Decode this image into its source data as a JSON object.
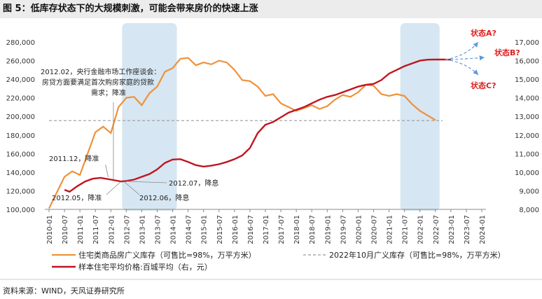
{
  "figure": {
    "title": "图 5：低库存状态下的大规模刺激，可能会带来房价的快速上涨",
    "source": "资料来源：WIND，天风证券研究所"
  },
  "colors": {
    "inventory": "#f0913a",
    "price": "#c0151f",
    "reference": "#9a9a9a",
    "highlight": "#cfe2f0",
    "scenario": "#e02020",
    "arrow": "#5b9bd5"
  },
  "chart_data": {
    "type": "line",
    "x_categories": [
      "2010-01",
      "2010-07",
      "2011-01",
      "2011-07",
      "2012-01",
      "2012-07",
      "2013-01",
      "2013-07",
      "2014-01",
      "2014-07",
      "2015-01",
      "2015-07",
      "2016-01",
      "2016-07",
      "2017-01",
      "2017-07",
      "2018-01",
      "2018-07",
      "2019-01",
      "2019-07",
      "2020-01",
      "2020-07",
      "2021-01",
      "2021-07",
      "2022-01",
      "2022-07",
      "2023-01",
      "2023-07",
      "2024-01"
    ],
    "y_left": {
      "ticks": [
        "100,000",
        "120,000",
        "140,000",
        "160,000",
        "180,000",
        "200,000",
        "220,000",
        "240,000",
        "260,000",
        "280,000"
      ],
      "range": [
        100000,
        280000
      ]
    },
    "y_right": {
      "ticks": [
        "8,000",
        "9,000",
        "10,000",
        "11,000",
        "12,000",
        "13,000",
        "14,000",
        "15,000",
        "16,000",
        "17,000"
      ],
      "range": [
        8000,
        17000
      ]
    },
    "shaded_periods": [
      {
        "from": "2012-07",
        "to": "2014-01"
      },
      {
        "from": "2021-07",
        "to": "2022-07"
      }
    ],
    "series": [
      {
        "name": "住宅类商品房广义库存（可售比=98%，万平方米）",
        "axis": "left",
        "points": [
          [
            "2010-01",
            101000
          ],
          [
            "2010-04",
            118000
          ],
          [
            "2010-07",
            135000
          ],
          [
            "2010-10",
            141000
          ],
          [
            "2011-01",
            137000
          ],
          [
            "2011-04",
            160000
          ],
          [
            "2011-07",
            183000
          ],
          [
            "2011-10",
            189000
          ],
          [
            "2012-01",
            182000
          ],
          [
            "2012-04",
            210000
          ],
          [
            "2012-07",
            220000
          ],
          [
            "2012-10",
            221000
          ],
          [
            "2013-01",
            212000
          ],
          [
            "2013-04",
            225000
          ],
          [
            "2013-07",
            232000
          ],
          [
            "2013-10",
            248000
          ],
          [
            "2014-01",
            252000
          ],
          [
            "2014-04",
            262000
          ],
          [
            "2014-07",
            263000
          ],
          [
            "2014-10",
            255000
          ],
          [
            "2015-01",
            258000
          ],
          [
            "2015-04",
            256000
          ],
          [
            "2015-07",
            260000
          ],
          [
            "2015-10",
            258000
          ],
          [
            "2016-01",
            250000
          ],
          [
            "2016-04",
            239000
          ],
          [
            "2016-07",
            238000
          ],
          [
            "2016-10",
            232000
          ],
          [
            "2017-01",
            222000
          ],
          [
            "2017-04",
            224000
          ],
          [
            "2017-07",
            214000
          ],
          [
            "2017-10",
            210000
          ],
          [
            "2018-01",
            206000
          ],
          [
            "2018-04",
            209000
          ],
          [
            "2018-07",
            212000
          ],
          [
            "2018-10",
            208000
          ],
          [
            "2019-01",
            211000
          ],
          [
            "2019-04",
            218000
          ],
          [
            "2019-07",
            223000
          ],
          [
            "2019-10",
            221000
          ],
          [
            "2020-01",
            226000
          ],
          [
            "2020-04",
            234000
          ],
          [
            "2020-07",
            233000
          ],
          [
            "2020-10",
            224000
          ],
          [
            "2021-01",
            222000
          ],
          [
            "2021-04",
            224000
          ],
          [
            "2021-07",
            222000
          ],
          [
            "2021-10",
            213000
          ],
          [
            "2022-01",
            206000
          ],
          [
            "2022-04",
            201000
          ],
          [
            "2022-07",
            196000
          ]
        ]
      },
      {
        "name": "2022年10月广义库存（可售比=98%，万平方米）",
        "axis": "left",
        "style": "dashed",
        "value": 195500
      },
      {
        "name": "样本住宅平均价格:百城平均（右，元）",
        "axis": "right",
        "points": [
          [
            "2010-07",
            9050
          ],
          [
            "2010-09",
            8950
          ],
          [
            "2010-12",
            9250
          ],
          [
            "2011-03",
            9500
          ],
          [
            "2011-06",
            9650
          ],
          [
            "2011-09",
            9700
          ],
          [
            "2012-01",
            9600
          ],
          [
            "2012-05",
            9500
          ],
          [
            "2012-07",
            9530
          ],
          [
            "2012-10",
            9600
          ],
          [
            "2013-01",
            9750
          ],
          [
            "2013-04",
            9900
          ],
          [
            "2013-07",
            10150
          ],
          [
            "2013-10",
            10500
          ],
          [
            "2014-01",
            10680
          ],
          [
            "2014-04",
            10700
          ],
          [
            "2014-07",
            10550
          ],
          [
            "2014-10",
            10380
          ],
          [
            "2015-01",
            10300
          ],
          [
            "2015-04",
            10350
          ],
          [
            "2015-07",
            10430
          ],
          [
            "2015-10",
            10550
          ],
          [
            "2016-01",
            10700
          ],
          [
            "2016-04",
            10900
          ],
          [
            "2016-07",
            11300
          ],
          [
            "2016-10",
            12100
          ],
          [
            "2017-01",
            12550
          ],
          [
            "2017-04",
            12700
          ],
          [
            "2017-07",
            12950
          ],
          [
            "2017-10",
            13200
          ],
          [
            "2018-01",
            13350
          ],
          [
            "2018-04",
            13500
          ],
          [
            "2018-07",
            13700
          ],
          [
            "2018-10",
            13900
          ],
          [
            "2019-01",
            14050
          ],
          [
            "2019-04",
            14150
          ],
          [
            "2019-07",
            14300
          ],
          [
            "2019-10",
            14450
          ],
          [
            "2020-01",
            14600
          ],
          [
            "2020-04",
            14700
          ],
          [
            "2020-07",
            14750
          ],
          [
            "2020-10",
            14950
          ],
          [
            "2021-01",
            15300
          ],
          [
            "2021-04",
            15500
          ],
          [
            "2021-07",
            15700
          ],
          [
            "2021-10",
            15850
          ],
          [
            "2022-01",
            16000
          ],
          [
            "2022-04",
            16050
          ],
          [
            "2022-07",
            16060
          ],
          [
            "2022-10",
            16060
          ],
          [
            "2023-01",
            16050
          ]
        ]
      }
    ],
    "annotations": [
      {
        "id": "a2012_02",
        "lines": [
          "2012.02，央行金融市场工作座谈会：",
          "房贷方面要满足首次购房家庭的贷款",
          "需求；降准"
        ],
        "date": "2012-02"
      },
      {
        "id": "a2011_12",
        "lines": [
          "2011.12，降准"
        ],
        "date": "2011-12"
      },
      {
        "id": "a2012_05",
        "lines": [
          "2012.05，降准"
        ],
        "date": "2012-05"
      },
      {
        "id": "a2012_06",
        "lines": [
          "2012.06，降息"
        ],
        "date": "2012-06"
      },
      {
        "id": "a2012_07",
        "lines": [
          "2012.07，降息"
        ],
        "date": "2012-07"
      }
    ],
    "scenarios": [
      "状态A?",
      "状态B?",
      "状态C?"
    ],
    "grid": false,
    "legend": "bottom"
  }
}
